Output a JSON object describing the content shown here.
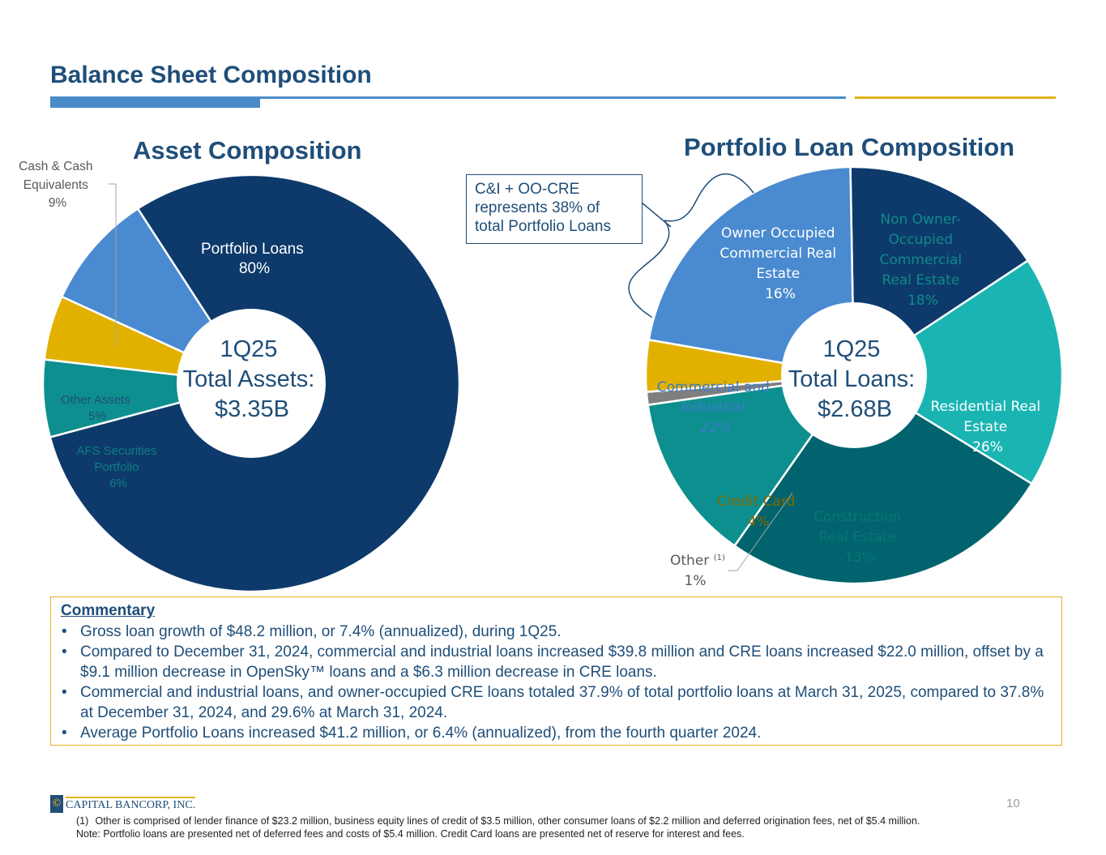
{
  "page": {
    "title": "Balance Sheet Composition",
    "page_number": "10",
    "logo_text": "CAPITAL BANCORP, INC.",
    "logo_mark": "©"
  },
  "asset_chart": {
    "title": "Asset Composition",
    "center_lines": [
      "1Q25",
      "Total Assets:",
      "$3.35B"
    ],
    "labels": {
      "portfolio_loans": [
        "Portfolio Loans",
        "80%"
      ],
      "afs": [
        "AFS Securities",
        "Portfolio",
        "6%"
      ],
      "other_assets": [
        "Other Assets",
        "5%"
      ],
      "cash": [
        "Cash & Cash",
        "Equivalents",
        "9%"
      ]
    }
  },
  "loan_chart": {
    "title": "Portfolio Loan Composition",
    "center_lines": [
      "1Q25",
      "Total Loans:",
      "$2.68B"
    ],
    "callout_lines": [
      "C&I + OO-CRE",
      "represents 38% of",
      "total Portfolio Loans"
    ],
    "labels": {
      "oocre": [
        "Owner Occupied",
        "Commercial Real",
        "Estate",
        "16%"
      ],
      "noocre": [
        "Non Owner-",
        "Occupied",
        "Commercial",
        "Real Estate",
        "18%"
      ],
      "rre": [
        "Residential Real",
        "Estate",
        "26%"
      ],
      "construction": [
        "Construction",
        "Real Estate",
        "13%"
      ],
      "other_name": "Other",
      "other_sup": "(1)",
      "other_pct": "1%",
      "credit_card": [
        "Credit Card",
        "4%"
      ],
      "ci": [
        "Commercial and",
        "Industrial",
        "22%"
      ]
    }
  },
  "chart_data": [
    {
      "type": "pie",
      "title": "Asset Composition",
      "categories": [
        "Portfolio Loans",
        "AFS Securities Portfolio",
        "Other Assets",
        "Cash & Cash Equivalents"
      ],
      "values": [
        80,
        6,
        5,
        9
      ],
      "unit": "%",
      "colors": [
        "#0d3a6b",
        "#0e8f8f",
        "#e2b100",
        "#4a8ad0"
      ]
    },
    {
      "type": "pie",
      "title": "Portfolio Loan Composition",
      "categories": [
        "Owner Occupied Commercial Real Estate",
        "Non Owner-Occupied Commercial Real Estate",
        "Residential Real Estate",
        "Construction Real Estate",
        "Other",
        "Credit Card",
        "Commercial and Industrial"
      ],
      "values": [
        16,
        18,
        26,
        13,
        1,
        4,
        22
      ],
      "unit": "%",
      "colors": [
        "#0d3a6b",
        "#1ab5b3",
        "#00636e",
        "#0e8f8f",
        "#7f7f7f",
        "#e2b100",
        "#4a8ad0"
      ]
    }
  ],
  "commentary": {
    "heading": "Commentary",
    "bullet": "•",
    "items": [
      "Gross loan growth of $48.2 million, or 7.4% (annualized), during 1Q25.",
      "Compared to December 31, 2024, commercial and industrial loans increased $39.8 million and CRE loans increased $22.0 million, offset by a $9.1 million decrease in OpenSky™ loans and a $6.3 million decrease in CRE loans.",
      "Commercial and industrial loans, and owner-occupied CRE loans totaled 37.9% of total portfolio loans at March 31, 2025, compared to 37.8% at December 31, 2024, and 29.6% at March 31, 2024.",
      "Average Portfolio Loans increased $41.2 million, or 6.4% (annualized), from the fourth quarter 2024."
    ]
  },
  "footnotes": {
    "num": "(1)",
    "note1": "Other is comprised of lender finance of $23.2 million, business equity lines of credit of $3.5 million, other consumer loans of $2.2 million and deferred origination fees, net of $5.4 million.",
    "note2": "Note: Portfolio loans are presented net of deferred fees and costs of $5.4 million. Credit Card loans are presented net of reserve for interest and fees."
  }
}
